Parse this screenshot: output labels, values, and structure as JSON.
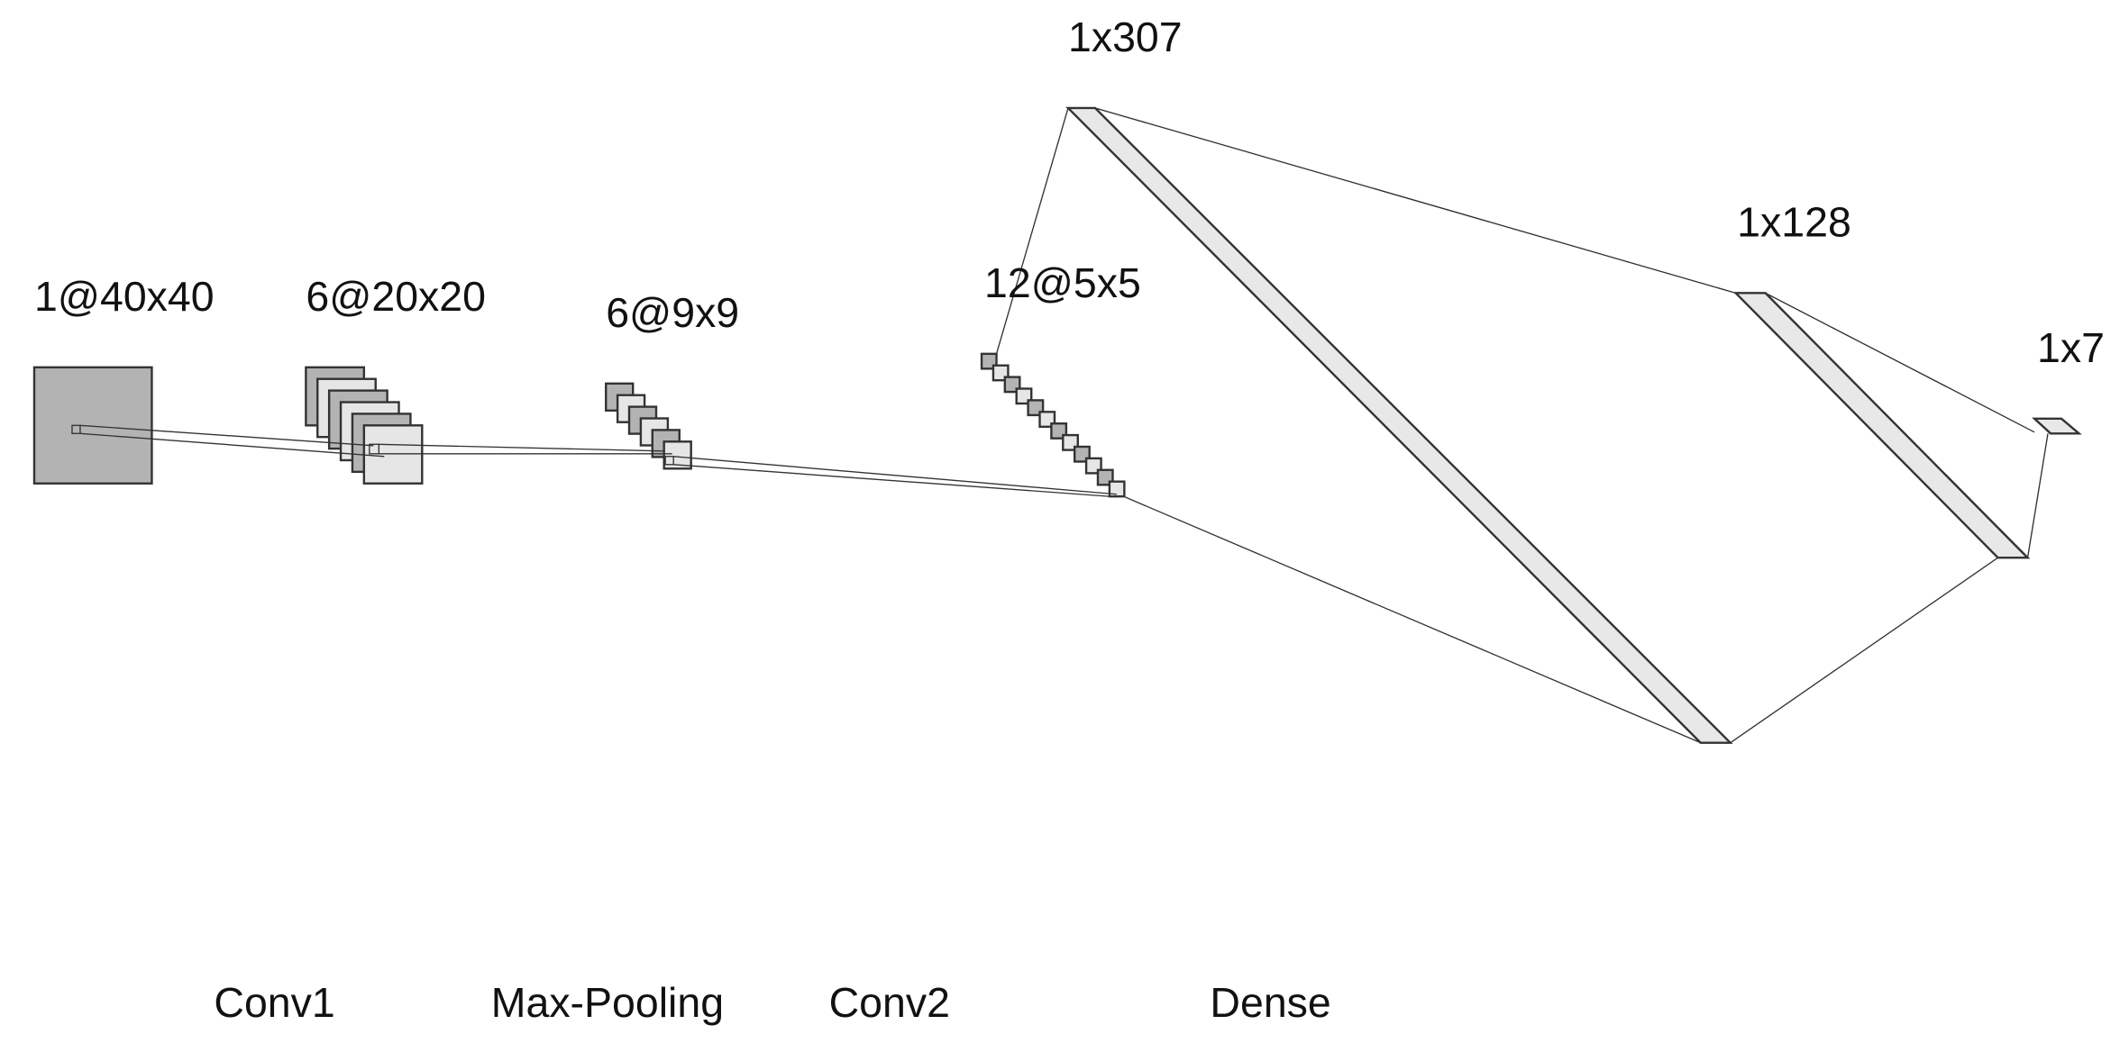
{
  "layers": [
    {
      "label": "1@40x40"
    },
    {
      "label": "6@20x20"
    },
    {
      "label": "6@9x9"
    },
    {
      "label": "12@5x5"
    },
    {
      "label": "1x307"
    },
    {
      "label": "1x128"
    },
    {
      "label": "1x7"
    }
  ],
  "operations": [
    {
      "label": "Conv1"
    },
    {
      "label": "Max-Pooling"
    },
    {
      "label": "Conv2"
    },
    {
      "label": "Dense"
    }
  ]
}
